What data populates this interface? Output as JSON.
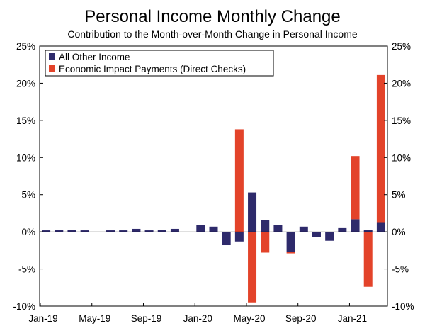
{
  "chart_data": {
    "type": "bar",
    "stacked": true,
    "title": "Personal Income Monthly Change",
    "subtitle": "Contribution to the Month-over-Month Change in Personal Income",
    "ylim": [
      -10,
      25
    ],
    "y_ticks": [
      "25%",
      "20%",
      "15%",
      "10%",
      "5%",
      "0%",
      "-5%",
      "-10%"
    ],
    "y_tick_values": [
      25,
      20,
      15,
      10,
      5,
      0,
      -5,
      -10
    ],
    "x_tick_labels": [
      "Jan-19",
      "May-19",
      "Sep-19",
      "Jan-20",
      "May-20",
      "Sep-20",
      "Jan-21"
    ],
    "x_tick_indices": [
      0,
      4,
      8,
      12,
      16,
      20,
      24
    ],
    "categories": [
      "Jan-19",
      "Feb-19",
      "Mar-19",
      "Apr-19",
      "May-19",
      "Jun-19",
      "Jul-19",
      "Aug-19",
      "Sep-19",
      "Oct-19",
      "Nov-19",
      "Dec-19",
      "Jan-20",
      "Feb-20",
      "Mar-20",
      "Apr-20",
      "May-20",
      "Jun-20",
      "Jul-20",
      "Aug-20",
      "Sep-20",
      "Oct-20",
      "Nov-20",
      "Dec-20",
      "Jan-21",
      "Feb-21",
      "Mar-21"
    ],
    "series": [
      {
        "name": "All Other Income",
        "color": "#2e2a6b",
        "values": [
          0.2,
          0.3,
          0.3,
          0.2,
          0.0,
          0.2,
          0.2,
          0.4,
          0.2,
          0.3,
          0.4,
          0.0,
          0.9,
          0.7,
          -1.8,
          -1.3,
          5.3,
          1.6,
          0.9,
          -2.7,
          0.7,
          -0.7,
          -1.2,
          0.5,
          1.7,
          0.3,
          1.3
        ]
      },
      {
        "name": "Economic Impact Payments (Direct Checks)",
        "color": "#e3432a",
        "values": [
          0,
          0,
          0,
          0,
          0,
          0,
          0,
          0,
          0,
          0,
          0,
          0,
          0,
          0,
          0,
          13.8,
          -9.5,
          -2.8,
          0,
          -0.2,
          0,
          0,
          0,
          0,
          8.5,
          -7.4,
          19.8
        ]
      }
    ],
    "legend_position": "top-left",
    "grid": false
  }
}
